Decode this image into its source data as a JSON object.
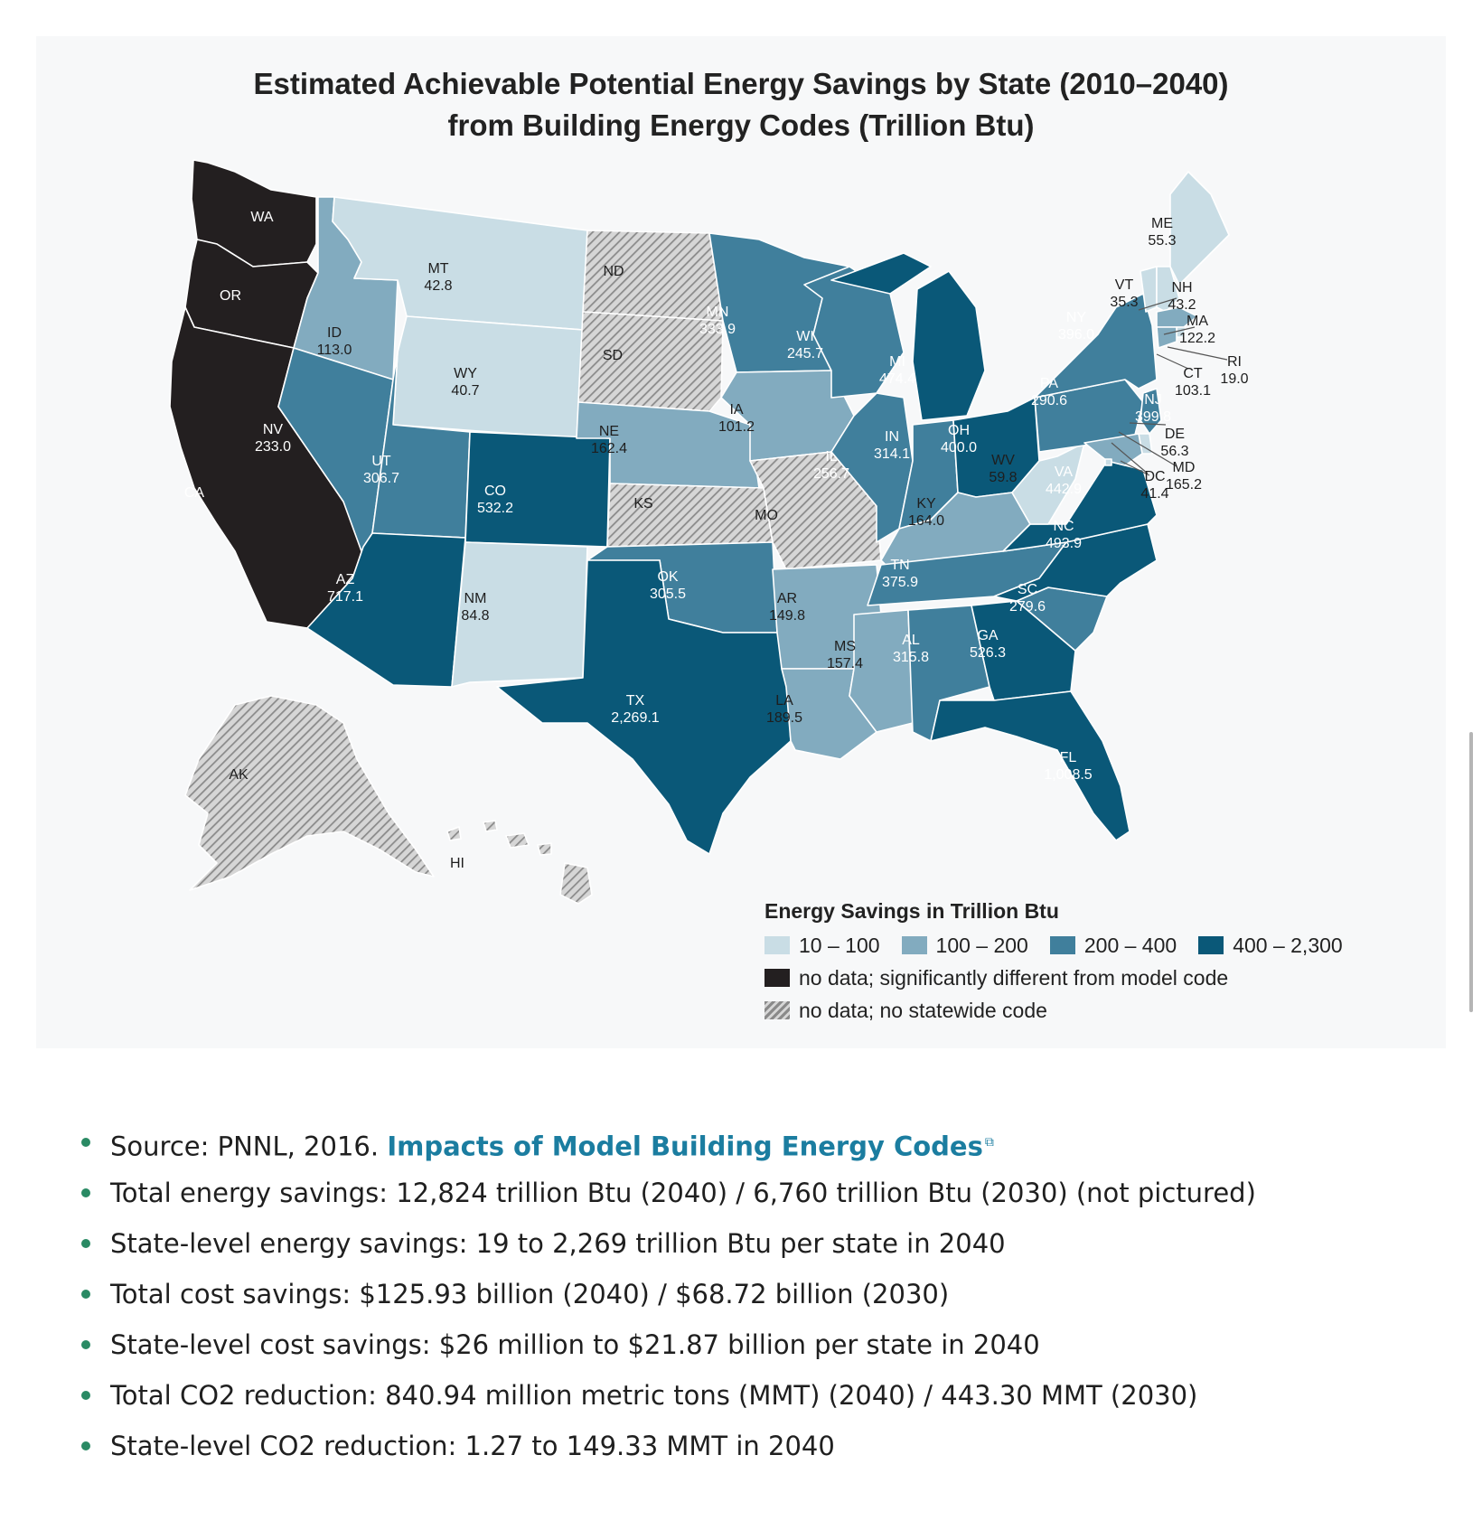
{
  "title_lines": [
    "Estimated Achievable Potential Energy Savings by State (2010–2040)",
    "from Building Energy Codes (Trillion Btu)"
  ],
  "colors": {
    "c1": "#c9dde5",
    "c2": "#82abbf",
    "c3": "#407f9c",
    "c4": "#0a5878",
    "black": "#231f20",
    "hatch": "#9a9a9a"
  },
  "legend": {
    "title": "Energy Savings in Trillion Btu",
    "bins": [
      "10 – 100",
      "100 – 200",
      "200 – 400",
      "400 – 2,300"
    ],
    "no_data_diff": "no data; significantly different from model code",
    "no_data_none": "no data; no statewide code"
  },
  "states": [
    {
      "abbr": "WA",
      "value": "",
      "cls": "black"
    },
    {
      "abbr": "OR",
      "value": "",
      "cls": "black"
    },
    {
      "abbr": "CA",
      "value": "",
      "cls": "black"
    },
    {
      "abbr": "ID",
      "value": "113.0",
      "cls": "c2"
    },
    {
      "abbr": "NV",
      "value": "233.0",
      "cls": "c3"
    },
    {
      "abbr": "MT",
      "value": "42.8",
      "cls": "c1"
    },
    {
      "abbr": "WY",
      "value": "40.7",
      "cls": "c1"
    },
    {
      "abbr": "UT",
      "value": "306.7",
      "cls": "c3"
    },
    {
      "abbr": "AZ",
      "value": "717.1",
      "cls": "c4"
    },
    {
      "abbr": "CO",
      "value": "532.2",
      "cls": "c4"
    },
    {
      "abbr": "NM",
      "value": "84.8",
      "cls": "c1"
    },
    {
      "abbr": "ND",
      "value": "",
      "cls": "hatch"
    },
    {
      "abbr": "SD",
      "value": "",
      "cls": "hatch"
    },
    {
      "abbr": "NE",
      "value": "162.4",
      "cls": "c2"
    },
    {
      "abbr": "KS",
      "value": "",
      "cls": "hatch"
    },
    {
      "abbr": "OK",
      "value": "305.5",
      "cls": "c3"
    },
    {
      "abbr": "TX",
      "value": "2,269.1",
      "cls": "c4"
    },
    {
      "abbr": "MN",
      "value": "333.9",
      "cls": "c3"
    },
    {
      "abbr": "IA",
      "value": "101.2",
      "cls": "c2"
    },
    {
      "abbr": "MO",
      "value": "",
      "cls": "hatch"
    },
    {
      "abbr": "AR",
      "value": "149.8",
      "cls": "c2"
    },
    {
      "abbr": "LA",
      "value": "189.5",
      "cls": "c2"
    },
    {
      "abbr": "WI",
      "value": "245.7",
      "cls": "c3"
    },
    {
      "abbr": "IL",
      "value": "256.7",
      "cls": "c3"
    },
    {
      "abbr": "MI",
      "value": "474.4",
      "cls": "c4"
    },
    {
      "abbr": "IN",
      "value": "314.1",
      "cls": "c3"
    },
    {
      "abbr": "OH",
      "value": "400.0",
      "cls": "c4"
    },
    {
      "abbr": "KY",
      "value": "164.0",
      "cls": "c2"
    },
    {
      "abbr": "TN",
      "value": "375.9",
      "cls": "c3"
    },
    {
      "abbr": "MS",
      "value": "157.4",
      "cls": "c2"
    },
    {
      "abbr": "AL",
      "value": "315.8",
      "cls": "c3"
    },
    {
      "abbr": "GA",
      "value": "526.3",
      "cls": "c4"
    },
    {
      "abbr": "FL",
      "value": "1,008.5",
      "cls": "c4"
    },
    {
      "abbr": "SC",
      "value": "279.6",
      "cls": "c3"
    },
    {
      "abbr": "NC",
      "value": "493.9",
      "cls": "c4"
    },
    {
      "abbr": "VA",
      "value": "442.9",
      "cls": "c4"
    },
    {
      "abbr": "WV",
      "value": "59.8",
      "cls": "c1"
    },
    {
      "abbr": "PA",
      "value": "290.6",
      "cls": "c3"
    },
    {
      "abbr": "NY",
      "value": "396.0",
      "cls": "c3"
    },
    {
      "abbr": "ME",
      "value": "55.3",
      "cls": "c1"
    },
    {
      "abbr": "VT",
      "value": "35.3",
      "cls": "c1"
    },
    {
      "abbr": "NH",
      "value": "43.2",
      "cls": "c1"
    },
    {
      "abbr": "MA",
      "value": "122.2",
      "cls": "c2"
    },
    {
      "abbr": "RI",
      "value": "19.0",
      "cls": "c1"
    },
    {
      "abbr": "CT",
      "value": "103.1",
      "cls": "c2"
    },
    {
      "abbr": "NJ",
      "value": "399.8",
      "cls": "c3"
    },
    {
      "abbr": "DE",
      "value": "56.3",
      "cls": "c1"
    },
    {
      "abbr": "MD",
      "value": "165.2",
      "cls": "c2"
    },
    {
      "abbr": "DC",
      "value": "41.4",
      "cls": "c1"
    },
    {
      "abbr": "AK",
      "value": "",
      "cls": "hatch"
    },
    {
      "abbr": "HI",
      "value": "",
      "cls": "hatch"
    }
  ],
  "notes": {
    "source_prefix": "Source: PNNL, 2016. ",
    "source_link": "Impacts of Model Building Energy Codes",
    "items": [
      "Total energy savings: 12,824 trillion Btu (2040) / 6,760 trillion Btu (2030) (not pictured)",
      "State-level energy savings: 19 to 2,269 trillion Btu per state in 2040",
      "Total cost savings: $125.93 billion (2040) / $68.72 billion (2030)",
      "State-level cost savings: $26 million to $21.87 billion per state in 2040",
      "Total CO2 reduction: 840.94 million metric tons (MMT) (2040) / 443.30 MMT (2030)",
      "State-level CO2 reduction: 1.27 to 149.33 MMT in 2040"
    ]
  }
}
